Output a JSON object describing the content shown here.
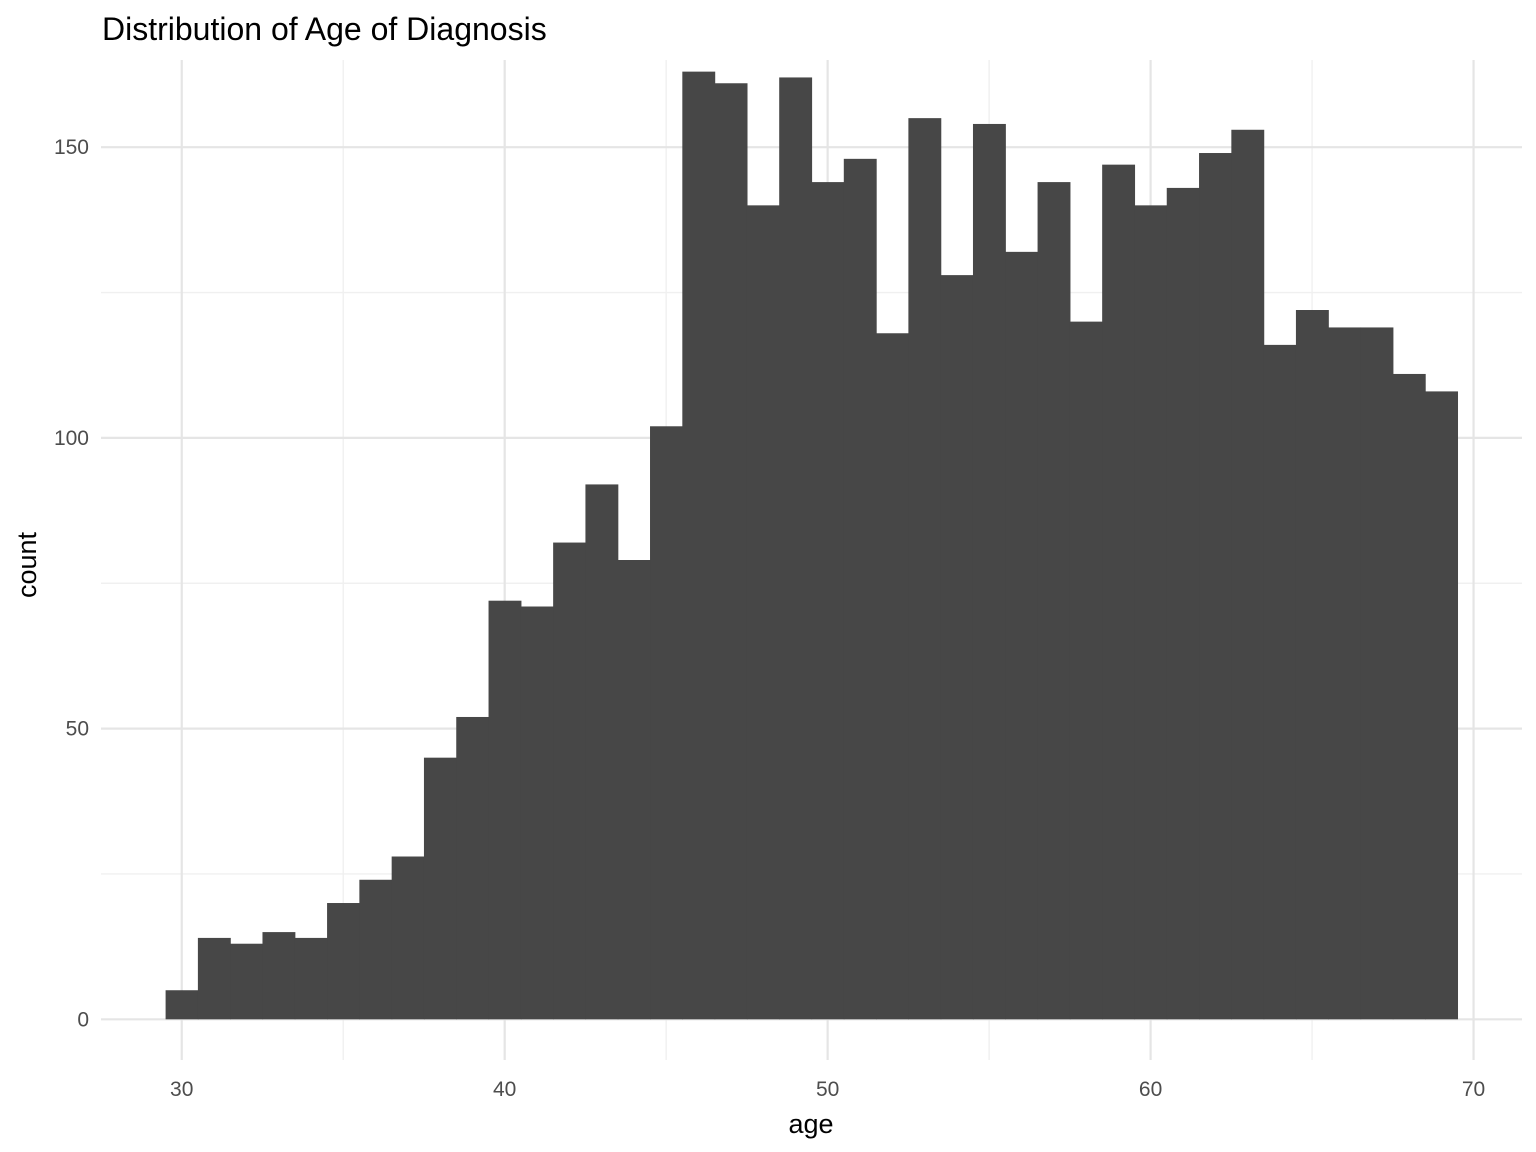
{
  "chart_data": {
    "type": "bar",
    "title": "Distribution of Age of Diagnosis",
    "xlabel": "age",
    "ylabel": "count",
    "xlim": [
      27.5,
      71.5
    ],
    "ylim": [
      -7,
      165
    ],
    "x_ticks": [
      30,
      40,
      50,
      60,
      70
    ],
    "y_ticks": [
      0,
      50,
      100,
      150
    ],
    "bin_width": 1,
    "bins": [
      {
        "x": 30,
        "count": 5
      },
      {
        "x": 31,
        "count": 14
      },
      {
        "x": 32,
        "count": 13
      },
      {
        "x": 33,
        "count": 15
      },
      {
        "x": 34,
        "count": 14
      },
      {
        "x": 35,
        "count": 20
      },
      {
        "x": 36,
        "count": 24
      },
      {
        "x": 37,
        "count": 28
      },
      {
        "x": 38,
        "count": 45
      },
      {
        "x": 39,
        "count": 52
      },
      {
        "x": 40,
        "count": 72
      },
      {
        "x": 41,
        "count": 71
      },
      {
        "x": 42,
        "count": 82
      },
      {
        "x": 43,
        "count": 92
      },
      {
        "x": 44,
        "count": 79
      },
      {
        "x": 45,
        "count": 102
      },
      {
        "x": 46,
        "count": 163
      },
      {
        "x": 47,
        "count": 161
      },
      {
        "x": 48,
        "count": 140
      },
      {
        "x": 49,
        "count": 162
      },
      {
        "x": 50,
        "count": 144
      },
      {
        "x": 51,
        "count": 148
      },
      {
        "x": 52,
        "count": 118
      },
      {
        "x": 53,
        "count": 155
      },
      {
        "x": 54,
        "count": 128
      },
      {
        "x": 55,
        "count": 154
      },
      {
        "x": 56,
        "count": 132
      },
      {
        "x": 57,
        "count": 144
      },
      {
        "x": 58,
        "count": 120
      },
      {
        "x": 59,
        "count": 147
      },
      {
        "x": 60,
        "count": 140
      },
      {
        "x": 61,
        "count": 143
      },
      {
        "x": 62,
        "count": 149
      },
      {
        "x": 63,
        "count": 153
      },
      {
        "x": 64,
        "count": 116
      },
      {
        "x": 65,
        "count": 122
      },
      {
        "x": 66,
        "count": 119
      },
      {
        "x": 67,
        "count": 119
      },
      {
        "x": 68,
        "count": 111
      },
      {
        "x": 69,
        "count": 108
      }
    ],
    "grid": true,
    "legend": "none",
    "bar_color": "#474747",
    "grid_color": "#e5e5e5"
  }
}
